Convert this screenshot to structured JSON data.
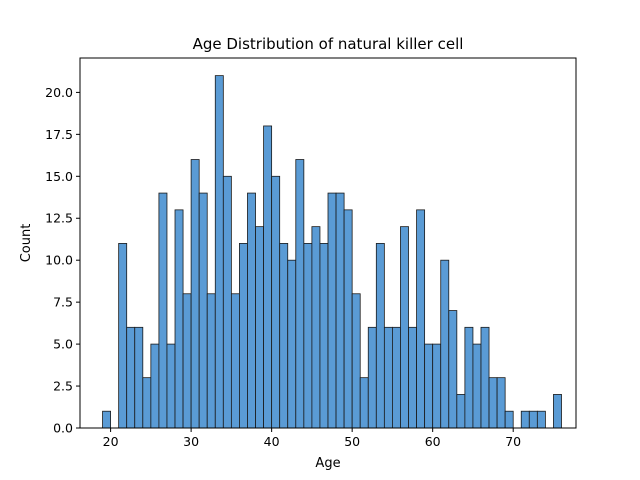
{
  "chart_data": {
    "type": "bar",
    "title": "Age Distribution of natural killer cell",
    "xlabel": "Age",
    "ylabel": "Count",
    "xlim": [
      16.2,
      77.8
    ],
    "ylim": [
      0,
      22.05
    ],
    "xticks": [
      20,
      30,
      40,
      50,
      60,
      70
    ],
    "yticks": [
      0.0,
      2.5,
      5.0,
      7.5,
      10.0,
      12.5,
      15.0,
      17.5,
      20.0
    ],
    "xtick_labels": [
      "20",
      "30",
      "40",
      "50",
      "60",
      "70"
    ],
    "ytick_labels": [
      "0.0",
      "2.5",
      "5.0",
      "7.5",
      "10.0",
      "12.5",
      "15.0",
      "17.5",
      "20.0"
    ],
    "grid": false,
    "bin_start": 19,
    "bin_width": 1,
    "bar_color": "#5a9bd5",
    "edge_color": "#1a1a1a",
    "values": [
      1,
      0,
      11,
      6,
      6,
      3,
      5,
      14,
      5,
      13,
      8,
      16,
      14,
      8,
      21,
      15,
      8,
      11,
      14,
      12,
      18,
      15,
      11,
      10,
      16,
      11,
      12,
      11,
      14,
      14,
      13,
      8,
      3,
      6,
      11,
      6,
      6,
      12,
      6,
      13,
      5,
      5,
      10,
      7,
      2,
      6,
      5,
      6,
      3,
      3,
      1,
      0,
      1,
      1,
      1,
      0,
      2
    ]
  }
}
